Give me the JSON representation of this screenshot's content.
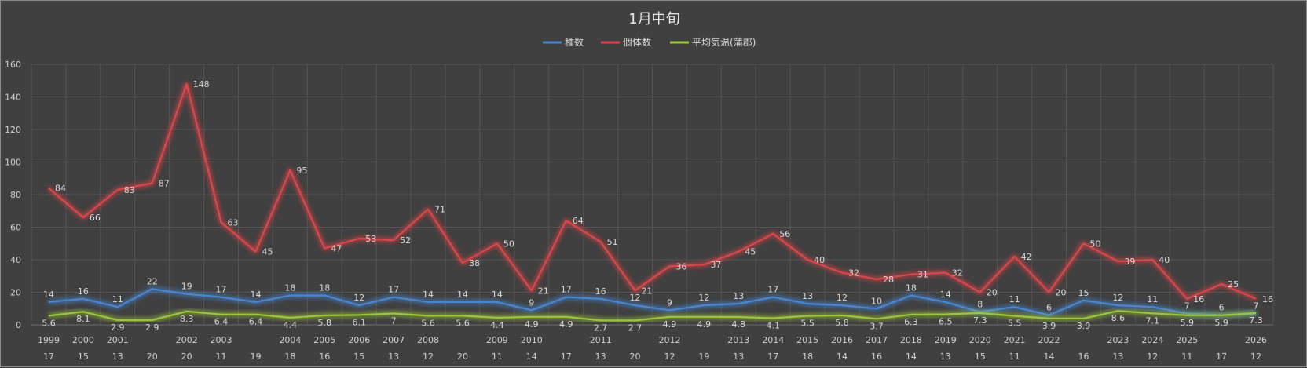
{
  "chart_data": {
    "type": "line",
    "title": "1月中旬",
    "ylim": [
      0,
      160
    ],
    "yticks": [
      0,
      20,
      40,
      60,
      80,
      100,
      120,
      140,
      160
    ],
    "grid": true,
    "legend_position": "top",
    "year_labels": [
      "1999",
      "2000",
      "2001",
      "",
      "2002",
      "2003",
      "",
      "2004",
      "2005",
      "2006",
      "2007",
      "2008",
      "",
      "2009",
      "2010",
      "",
      "2011",
      "",
      "2012",
      "",
      "2013",
      "2014",
      "2015",
      "2016",
      "2017",
      "2018",
      "2019",
      "2020",
      "2021",
      "2022",
      "",
      "2023",
      "2024",
      "2025",
      "",
      "2026"
    ],
    "categories": [
      "17",
      "15",
      "13",
      "20",
      "20",
      "11",
      "19",
      "18",
      "16",
      "15",
      "13",
      "12",
      "20",
      "11",
      "14",
      "17",
      "13",
      "20",
      "12",
      "19",
      "13",
      "17",
      "18",
      "14",
      "16",
      "14",
      "13",
      "15",
      "11",
      "14",
      "16",
      "13",
      "12",
      "11",
      "17",
      "12"
    ],
    "series": [
      {
        "name": "種数",
        "color": "#4a86d0",
        "values": [
          14,
          16,
          11,
          22,
          19,
          17,
          14,
          18,
          18,
          12,
          17,
          14,
          14,
          14,
          9,
          17,
          16,
          12,
          9,
          12,
          13,
          17,
          13,
          12,
          10,
          18,
          14,
          8,
          11,
          6,
          15,
          12,
          11,
          7,
          6,
          7
        ]
      },
      {
        "name": "個体数",
        "color": "#d9464b",
        "values": [
          84,
          66,
          83,
          87,
          148,
          63,
          45,
          95,
          47,
          53,
          52,
          71,
          38,
          50,
          21,
          64,
          51,
          21,
          36,
          37,
          45,
          56,
          40,
          32,
          28,
          31,
          32,
          20,
          42,
          20,
          50,
          39,
          40,
          16,
          25,
          16
        ]
      },
      {
        "name": "平均気温(蒲郡)",
        "color": "#9cc43c",
        "values": [
          5.6,
          8.1,
          2.9,
          2.9,
          8.3,
          6.4,
          6.4,
          4.4,
          5.8,
          6.1,
          7,
          5.6,
          5.6,
          4.4,
          4.9,
          4.9,
          2.7,
          2.7,
          4.9,
          4.9,
          4.8,
          4.1,
          5.5,
          5.8,
          3.7,
          6.3,
          6.5,
          7.3,
          5.5,
          3.9,
          3.9,
          8.6,
          7.1,
          5.9,
          5.9,
          7.3
        ]
      }
    ]
  }
}
